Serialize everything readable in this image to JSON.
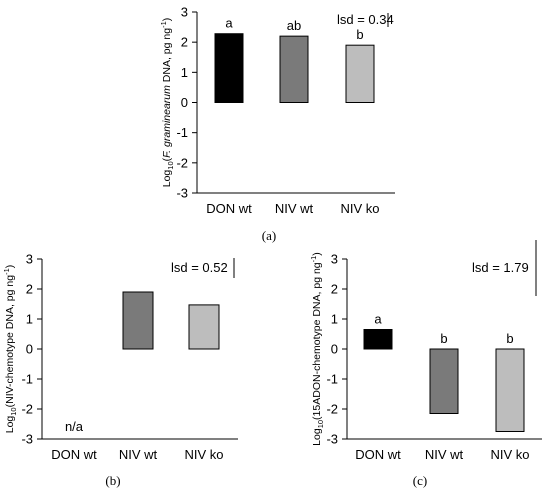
{
  "colors": {
    "DON wt": "#000000",
    "NIV wt": "#7a7a7a",
    "NIV ko": "#bdbdbd"
  },
  "chart_data": [
    {
      "type": "bar",
      "panel": "(a)",
      "categories": [
        "DON wt",
        "NIV wt",
        "NIV ko"
      ],
      "values": [
        2.28,
        2.2,
        1.9
      ],
      "bar_labels": [
        "a",
        "ab",
        "b"
      ],
      "ylabel_pre": "Log",
      "ylabel_sub": "10",
      "ylabel_mid1": "(",
      "ylabel_ital": "F. graminearum",
      "ylabel_mid2": " DNA, pg ng",
      "ylabel_sup": "-1",
      "ylabel_post": ")",
      "ylim": [
        -3,
        3
      ],
      "yticks": [
        "-3",
        "-2",
        "-1",
        "0",
        "1",
        "2",
        "3"
      ],
      "lsd_text": "lsd = 0.34",
      "lsd_value": 0.34,
      "grid": false,
      "legend": "none"
    },
    {
      "type": "bar",
      "panel": "(b)",
      "categories": [
        "DON wt",
        "NIV wt",
        "NIV ko"
      ],
      "values": [
        null,
        1.9,
        1.47
      ],
      "bar_labels": [
        "n/a",
        "",
        ""
      ],
      "ylabel_pre": "Log",
      "ylabel_sub": "10",
      "ylabel_mid1": "(NIV-chemotype DNA, pg ng",
      "ylabel_sup": "-1",
      "ylabel_post": ")",
      "ylim": [
        -3,
        3
      ],
      "yticks": [
        "-3",
        "-2",
        "-1",
        "0",
        "1",
        "2",
        "3"
      ],
      "lsd_text": "lsd = 0.52",
      "lsd_value": 0.52,
      "grid": false,
      "legend": "none"
    },
    {
      "type": "bar",
      "panel": "(c)",
      "categories": [
        "DON wt",
        "NIV wt",
        "NIV ko"
      ],
      "values": [
        0.65,
        -2.15,
        -2.75
      ],
      "bar_labels": [
        "a",
        "b",
        "b"
      ],
      "ylabel_pre": "Log",
      "ylabel_sub": "10",
      "ylabel_mid1": "(15ADON-chemotype DNA, pg ng",
      "ylabel_sup": "-1",
      "ylabel_post": ")",
      "ylim": [
        -3,
        3
      ],
      "yticks": [
        "-3",
        "-2",
        "-1",
        "0",
        "1",
        "2",
        "3"
      ],
      "lsd_text": "lsd = 1.79",
      "lsd_value": 1.79,
      "grid": false,
      "legend": "none"
    }
  ]
}
